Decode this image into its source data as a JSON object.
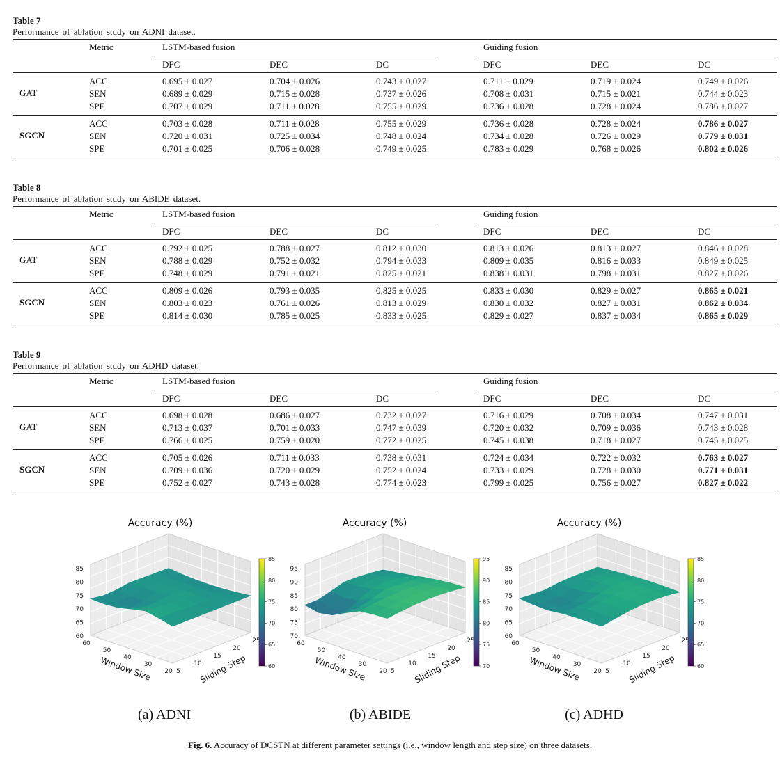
{
  "tables": [
    {
      "label": "Table 7",
      "caption": "Performance of ablation study on ADNI dataset.",
      "metric_header": "Metric",
      "group_headers": [
        "LSTM-based fusion",
        "Guiding fusion"
      ],
      "sub_headers": [
        "DFC",
        "DEC",
        "DC",
        "DFC",
        "DEC",
        "DC"
      ],
      "groups": [
        {
          "name": "GAT",
          "bold": false,
          "rows": [
            {
              "metric": "ACC",
              "values": [
                "0.695 ± 0.027",
                "0.704 ± 0.026",
                "0.743 ± 0.027",
                "0.711 ± 0.029",
                "0.719 ± 0.024",
                "0.749 ± 0.026"
              ]
            },
            {
              "metric": "SEN",
              "values": [
                "0.689 ± 0.029",
                "0.715 ± 0.028",
                "0.737 ± 0.026",
                "0.708 ± 0.031",
                "0.715 ± 0.021",
                "0.744 ± 0.023"
              ]
            },
            {
              "metric": "SPE",
              "values": [
                "0.707 ± 0.029",
                "0.711 ± 0.028",
                "0.755 ± 0.029",
                "0.736 ± 0.028",
                "0.728 ± 0.024",
                "0.786 ± 0.027"
              ]
            }
          ]
        },
        {
          "name": "SGCN",
          "bold": true,
          "rows": [
            {
              "metric": "ACC",
              "values": [
                "0.703 ± 0.028",
                "0.711 ± 0.028",
                "0.755 ± 0.029",
                "0.736 ± 0.028",
                "0.728 ± 0.024",
                "0.786 ± 0.027"
              ]
            },
            {
              "metric": "SEN",
              "values": [
                "0.720 ± 0.031",
                "0.725 ± 0.034",
                "0.748 ± 0.024",
                "0.734 ± 0.028",
                "0.726 ± 0.029",
                "0.779 ± 0.031"
              ]
            },
            {
              "metric": "SPE",
              "values": [
                "0.701 ± 0.025",
                "0.706 ± 0.028",
                "0.749 ± 0.025",
                "0.783 ± 0.029",
                "0.768 ± 0.026",
                "0.802 ± 0.026"
              ]
            }
          ]
        }
      ]
    },
    {
      "label": "Table 8",
      "caption": "Performance of ablation study on ABIDE dataset.",
      "metric_header": "Metric",
      "group_headers": [
        "LSTM-based fusion",
        "Guiding fusion"
      ],
      "sub_headers": [
        "DFC",
        "DEC",
        "DC",
        "DFC",
        "DEC",
        "DC"
      ],
      "groups": [
        {
          "name": "GAT",
          "bold": false,
          "rows": [
            {
              "metric": "ACC",
              "values": [
                "0.792 ± 0.025",
                "0.788 ± 0.027",
                "0.812 ± 0.030",
                "0.813 ± 0.026",
                "0.813 ± 0.027",
                "0.846 ± 0.028"
              ]
            },
            {
              "metric": "SEN",
              "values": [
                "0.788 ± 0.029",
                "0.752 ± 0.032",
                "0.794 ± 0.033",
                "0.809 ± 0.035",
                "0.816 ± 0.033",
                "0.849 ± 0.025"
              ]
            },
            {
              "metric": "SPE",
              "values": [
                "0.748 ± 0.029",
                "0.791 ± 0.021",
                "0.825 ± 0.021",
                "0.838 ± 0.031",
                "0.798 ± 0.031",
                "0.827 ± 0.026"
              ]
            }
          ]
        },
        {
          "name": "SGCN",
          "bold": true,
          "rows": [
            {
              "metric": "ACC",
              "values": [
                "0.809 ± 0.026",
                "0.793 ± 0.035",
                "0.825 ± 0.025",
                "0.833 ± 0.030",
                "0.829 ± 0.027",
                "0.865 ± 0.021"
              ]
            },
            {
              "metric": "SEN",
              "values": [
                "0.803 ± 0.023",
                "0.761 ± 0.026",
                "0.813 ± 0.029",
                "0.830 ± 0.032",
                "0.827 ± 0.031",
                "0.862 ± 0.034"
              ]
            },
            {
              "metric": "SPE",
              "values": [
                "0.814 ± 0.030",
                "0.785 ± 0.025",
                "0.833 ± 0.025",
                "0.829 ± 0.027",
                "0.837 ± 0.034",
                "0.865 ± 0.029"
              ]
            }
          ]
        }
      ]
    },
    {
      "label": "Table 9",
      "caption": "Performance of ablation study on ADHD dataset.",
      "metric_header": "Metric",
      "group_headers": [
        "LSTM-based fusion",
        "Guiding fusion"
      ],
      "sub_headers": [
        "DFC",
        "DEC",
        "DC",
        "DFC",
        "DEC",
        "DC"
      ],
      "groups": [
        {
          "name": "GAT",
          "bold": false,
          "rows": [
            {
              "metric": "ACC",
              "values": [
                "0.698 ± 0.028",
                "0.686 ± 0.027",
                "0.732 ± 0.027",
                "0.716 ± 0.029",
                "0.708 ± 0.034",
                "0.747 ± 0.031"
              ]
            },
            {
              "metric": "SEN",
              "values": [
                "0.713 ± 0.037",
                "0.701 ± 0.033",
                "0.747 ± 0.039",
                "0.720 ± 0.032",
                "0.709 ± 0.036",
                "0.743 ± 0.028"
              ]
            },
            {
              "metric": "SPE",
              "values": [
                "0.766 ± 0.025",
                "0.759 ± 0.020",
                "0.772 ± 0.025",
                "0.745 ± 0.038",
                "0.718 ± 0.027",
                "0.745 ± 0.025"
              ]
            }
          ]
        },
        {
          "name": "SGCN",
          "bold": true,
          "rows": [
            {
              "metric": "ACC",
              "values": [
                "0.705 ± 0.026",
                "0.711 ± 0.033",
                "0.738 ± 0.031",
                "0.724 ± 0.034",
                "0.722 ± 0.032",
                "0.763 ± 0.027"
              ]
            },
            {
              "metric": "SEN",
              "values": [
                "0.709 ± 0.036",
                "0.720 ± 0.029",
                "0.752 ± 0.024",
                "0.733 ± 0.029",
                "0.728 ± 0.030",
                "0.771 ± 0.031"
              ]
            },
            {
              "metric": "SPE",
              "values": [
                "0.752 ± 0.027",
                "0.743 ± 0.028",
                "0.774 ± 0.023",
                "0.799 ± 0.025",
                "0.756 ± 0.027",
                "0.827 ± 0.022"
              ]
            }
          ]
        }
      ]
    }
  ],
  "figure": {
    "caption_label": "Fig. 6.",
    "caption_text": "Accuracy of DCSTN at different parameter settings (i.e., window length and step size) on three datasets.",
    "panels": [
      {
        "label": "(a) ADNI",
        "title": "Accuracy (%)",
        "xlabel": "Window Size",
        "ylabel": "Sliding Step",
        "x_ticks": [
          "60",
          "50",
          "40",
          "30",
          "20"
        ],
        "y_ticks": [
          "5",
          "10",
          "15",
          "20",
          "25"
        ],
        "z_ticks": [
          "60",
          "65",
          "70",
          "75",
          "80",
          "85"
        ],
        "cbar_ticks": [
          "60",
          "65",
          "70",
          "75",
          "80",
          "85"
        ],
        "zlim": [
          60,
          85
        ]
      },
      {
        "label": "(b) ABIDE",
        "title": "Accuracy (%)",
        "xlabel": "Window Size",
        "ylabel": "Sliding Step",
        "x_ticks": [
          "60",
          "50",
          "40",
          "30",
          "20"
        ],
        "y_ticks": [
          "5",
          "10",
          "15",
          "20",
          "25"
        ],
        "z_ticks": [
          "70",
          "75",
          "80",
          "85",
          "90",
          "95"
        ],
        "cbar_ticks": [
          "70",
          "75",
          "80",
          "85",
          "90",
          "95"
        ],
        "zlim": [
          70,
          95
        ]
      },
      {
        "label": "(c) ADHD",
        "title": "Accuracy (%)",
        "xlabel": "Window Size",
        "ylabel": "Sliding Step",
        "x_ticks": [
          "60",
          "50",
          "40",
          "30",
          "20"
        ],
        "y_ticks": [
          "5",
          "10",
          "15",
          "20",
          "25"
        ],
        "z_ticks": [
          "60",
          "65",
          "70",
          "75",
          "80",
          "85"
        ],
        "cbar_ticks": [
          "60",
          "65",
          "70",
          "75",
          "80",
          "85"
        ],
        "zlim": [
          60,
          85
        ]
      }
    ]
  }
}
